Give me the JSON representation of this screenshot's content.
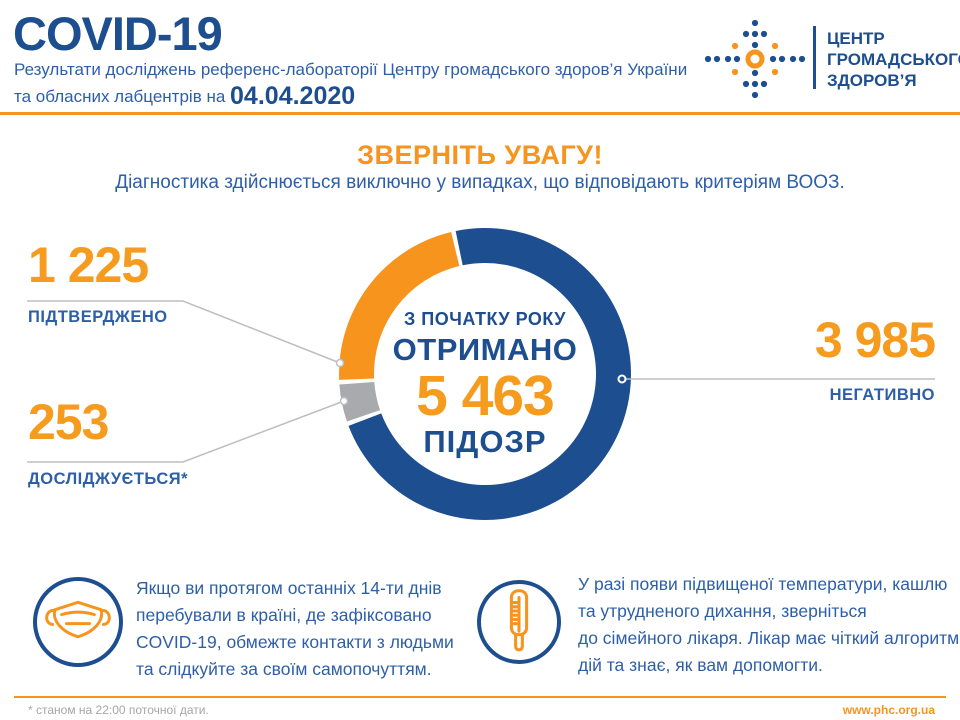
{
  "colors": {
    "navy": "#1d4e8f",
    "blue_text": "#2d5fa8",
    "orange": "#f7941e",
    "orange_number": "#f59b1d",
    "gray_segment": "#a8aaad",
    "leader_line": "#bcbec0",
    "footnote_gray": "#a6a6a6"
  },
  "header": {
    "title": "COVID-19",
    "subtitle_line1": "Результати досліджень референс-лабораторії Центру громадського здоров’я України",
    "subtitle_line2": "та обласних лабцентрів на",
    "date": "04.04.2020",
    "logo": {
      "line1": "ЦЕНТР",
      "line2": "ГРОМАДСЬКОГО",
      "line3": "ЗДОРОВ’Я"
    }
  },
  "notice": {
    "title": "ЗВЕРНІТЬ УВАГУ!",
    "subtitle": "Діагностика здійснюється виключно у випадках, що відповідають критеріям ВООЗ."
  },
  "chart_data": {
    "type": "donut",
    "title": "З початку року отримано 5 463 підозр",
    "center": {
      "line1": "З ПОЧАТКУ РОКУ",
      "line2": "ОТРИМАНО",
      "value": "5 463",
      "line4": "ПІДОЗР"
    },
    "total": 5463,
    "start_angle_deg": -12.5,
    "gap_deg": 1.8,
    "segments": [
      {
        "name": "confirmed",
        "label": "ПІДТВЕРДЖЕНО",
        "value": 1225,
        "display": "1 225",
        "color": "#f7941e"
      },
      {
        "name": "under-investigation",
        "label": "ДОСЛІДЖУЄТЬСЯ*",
        "value": 253,
        "display": "253",
        "color": "#a8aaad"
      },
      {
        "name": "negative",
        "label": "НЕГАТИВНО",
        "value": 3985,
        "display": "3 985",
        "color": "#1d4e8f"
      }
    ]
  },
  "info_boxes": [
    {
      "icon": "face-mask-icon",
      "lines": [
        "Якщо ви протягом останніх 14-ти днів",
        "перебували в країні, де зафіксовано",
        "COVID-19, обмежте контакти з людьми",
        "та слідкуйте за своїм самопочуттям."
      ]
    },
    {
      "icon": "thermometer-icon",
      "lines": [
        "У разі появи підвищеної температури, кашлю",
        "та утрудненого дихання, зверніться",
        "до сімейного лікаря. Лікар має чіткий алгоритм",
        "дій та знає, як вам допомогти."
      ]
    }
  ],
  "footer": {
    "note": "* станом на 22:00 поточної дати.",
    "website": "www.phc.org.ua"
  }
}
